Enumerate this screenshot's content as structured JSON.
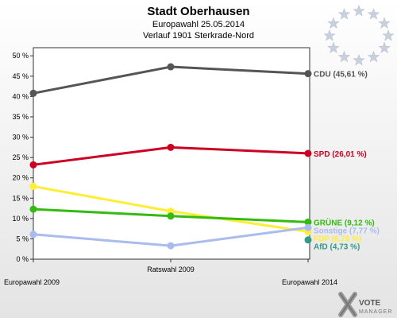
{
  "header": {
    "title": "Stadt Oberhausen",
    "subtitle1": "Europawahl 25.05.2014",
    "subtitle2": "Verlauf 1901 Sterkrade-Nord"
  },
  "logo": {
    "line1": "VOTE",
    "line2": "MANAGER"
  },
  "chart_data": {
    "type": "line",
    "title": "Stadt Oberhausen",
    "categories": [
      "Europawahl 2009",
      "Ratswahl 2009",
      "Europawahl 2014"
    ],
    "ylim": [
      0,
      52
    ],
    "yticks": [
      0,
      5,
      10,
      15,
      20,
      25,
      30,
      35,
      40,
      45,
      50
    ],
    "ytick_labels": [
      "0 %",
      "5 %",
      "10 %",
      "15 %",
      "20 %",
      "25 %",
      "30 %",
      "35 %",
      "40 %",
      "45 %",
      "50 %"
    ],
    "grid": false,
    "legend": "end-of-line labels",
    "series": [
      {
        "name": "CDU",
        "label": "CDU (45,61 %)",
        "color": "#555555",
        "values": [
          40.8,
          47.3,
          45.61
        ]
      },
      {
        "name": "SPD",
        "label": "SPD (26,01 %)",
        "color": "#cc0022",
        "values": [
          23.2,
          27.5,
          26.01
        ]
      },
      {
        "name": "FDP",
        "label": "FDP (6,76 %)",
        "color": "#ffee33",
        "values": [
          17.9,
          11.8,
          6.76
        ]
      },
      {
        "name": "GRÜNE",
        "label": "GRÜNE (9,12 %)",
        "color": "#33bb11",
        "values": [
          12.3,
          10.6,
          9.12
        ]
      },
      {
        "name": "Sonstige",
        "label": "Sonstige (7,77 %)",
        "color": "#aabbee",
        "values": [
          6.1,
          3.3,
          7.77
        ]
      },
      {
        "name": "AfD",
        "label": "AfD (4,73 %)",
        "color": "#339988",
        "values": [
          null,
          null,
          4.73
        ]
      }
    ]
  }
}
